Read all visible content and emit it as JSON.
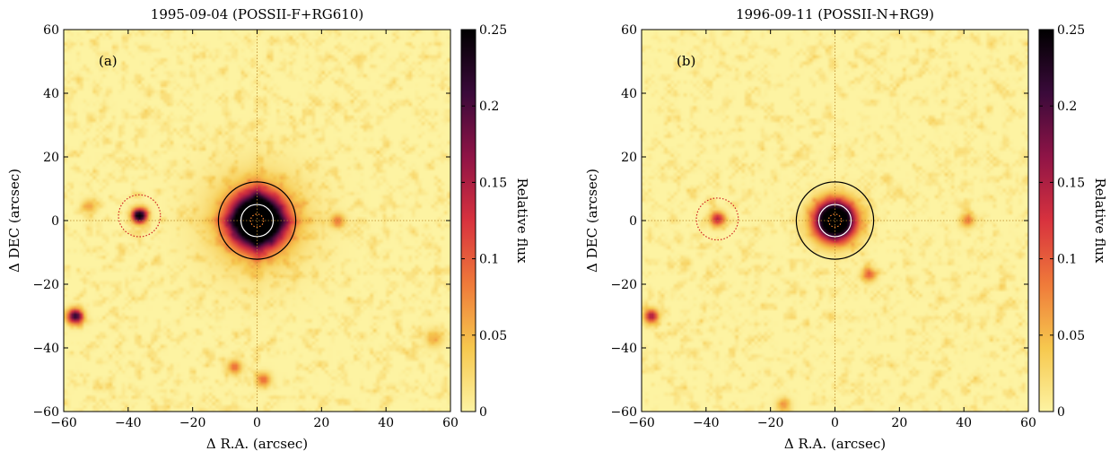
{
  "chart_data": [
    {
      "type": "heatmap",
      "title": "1995-09-04 (POSSII-F+RG610)",
      "panel_label": "(a)",
      "xlabel": "Δ R.A. (arcsec)",
      "ylabel": "Δ DEC (arcsec)",
      "xlim": [
        -60,
        60
      ],
      "ylim": [
        -60,
        60
      ],
      "x_ticks": [
        -60,
        -40,
        -20,
        0,
        20,
        40,
        60
      ],
      "y_ticks": [
        -60,
        -40,
        -20,
        0,
        20,
        40,
        60
      ],
      "colorbar": {
        "label": "Relative flux",
        "range": [
          0,
          0.25
        ],
        "ticks": [
          0,
          0.05,
          0.1,
          0.15,
          0.2,
          0.25
        ]
      },
      "colormap_colors": [
        "#fdf3a2",
        "#f6c84e",
        "#ef7a3a",
        "#d8323e",
        "#8f1446",
        "#3a0a3a",
        "#000000"
      ],
      "sources": [
        {
          "x": 0,
          "y": 0,
          "peak": 0.25,
          "sigma": 5.5,
          "spikes": true
        },
        {
          "x": -36.5,
          "y": 1.5,
          "peak": 0.17,
          "sigma": 1.6
        },
        {
          "x": -56.5,
          "y": -30,
          "peak": 0.14,
          "sigma": 1.6
        },
        {
          "x": -52,
          "y": 4.5,
          "peak": 0.04,
          "sigma": 1.5
        },
        {
          "x": -7,
          "y": -46,
          "peak": 0.06,
          "sigma": 1.5
        },
        {
          "x": 2,
          "y": -50,
          "peak": 0.06,
          "sigma": 1.5
        },
        {
          "x": 25,
          "y": 0,
          "peak": 0.05,
          "sigma": 1.5
        },
        {
          "x": 55,
          "y": -37,
          "peak": 0.03,
          "sigma": 2
        }
      ],
      "circles": [
        {
          "x": 0,
          "y": 0,
          "r": 12,
          "color": "#000000",
          "style": "solid"
        },
        {
          "x": 0,
          "y": 0,
          "r": 5,
          "color": "#ffffff",
          "style": "solid"
        },
        {
          "x": 0,
          "y": 0,
          "r": 2,
          "color": "#ff8a30",
          "style": "dotted"
        },
        {
          "x": -36.5,
          "y": 1.5,
          "r": 6.5,
          "color": "#d22626",
          "style": "dotted"
        }
      ]
    },
    {
      "type": "heatmap",
      "title": "1996-09-11 (POSSII-N+RG9)",
      "panel_label": "(b)",
      "xlabel": "Δ R.A. (arcsec)",
      "ylabel": "Δ DEC (arcsec)",
      "xlim": [
        -60,
        60
      ],
      "ylim": [
        -60,
        60
      ],
      "x_ticks": [
        -60,
        -40,
        -20,
        0,
        20,
        40,
        60
      ],
      "y_ticks": [
        -60,
        -40,
        -20,
        0,
        20,
        40,
        60
      ],
      "colorbar": {
        "label": "Relative flux",
        "range": [
          0,
          0.25
        ],
        "ticks": [
          0,
          0.05,
          0.1,
          0.15,
          0.2,
          0.25
        ]
      },
      "colormap_colors": [
        "#fdf3a2",
        "#f6c84e",
        "#ef7a3a",
        "#d8323e",
        "#8f1446",
        "#3a0a3a",
        "#000000"
      ],
      "sources": [
        {
          "x": 0,
          "y": 0,
          "peak": 0.25,
          "sigma": 4.2,
          "spikes": false
        },
        {
          "x": -36.5,
          "y": 0.5,
          "peak": 0.09,
          "sigma": 1.6
        },
        {
          "x": -57,
          "y": -30,
          "peak": 0.1,
          "sigma": 1.5
        },
        {
          "x": 10.5,
          "y": -17,
          "peak": 0.06,
          "sigma": 1.5
        },
        {
          "x": 41,
          "y": 0,
          "peak": 0.05,
          "sigma": 1.5
        },
        {
          "x": -16,
          "y": -58,
          "peak": 0.04,
          "sigma": 1.5
        }
      ],
      "circles": [
        {
          "x": 0,
          "y": 0,
          "r": 12,
          "color": "#000000",
          "style": "solid"
        },
        {
          "x": 0,
          "y": 0,
          "r": 5,
          "color": "#ffffff",
          "style": "solid"
        },
        {
          "x": 0,
          "y": 0,
          "r": 2,
          "color": "#ff8a30",
          "style": "dotted"
        },
        {
          "x": -36.5,
          "y": 0.5,
          "r": 6.5,
          "color": "#d22626",
          "style": "dotted"
        }
      ]
    }
  ]
}
